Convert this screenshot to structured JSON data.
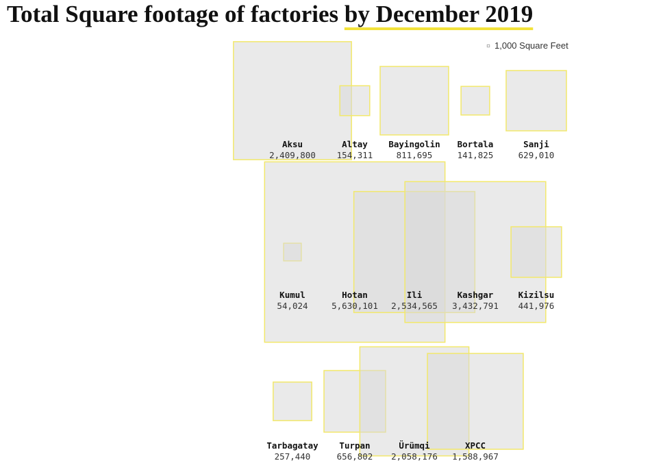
{
  "chart_data": {
    "type": "square_area",
    "title": "Total Square footage of factories",
    "title_highlight": "by December 2019",
    "legend": {
      "value": 1000,
      "label": "1,000 Square Feet"
    },
    "categories": [
      "Aksu",
      "Altay",
      "Bayingolin",
      "Bortala",
      "Sanji",
      "Kumul",
      "Hotan",
      "Ili",
      "Kashgar",
      "Kizilsu",
      "Tarbagatay",
      "Turpan",
      "Ürümqi",
      "XPCC"
    ],
    "values": [
      2409800,
      154311,
      811695,
      141825,
      629010,
      54024,
      5630101,
      2534565,
      3432791,
      441976,
      257440,
      656802,
      2058176,
      1588967
    ],
    "value_labels": [
      "2,409,800",
      "154,311",
      "811,695",
      "141,825",
      "629,010",
      "54,024",
      "5,630,101",
      "2,534,565",
      "3,432,791",
      "441,976",
      "257,440",
      "656,802",
      "2,058,176",
      "1,588,967"
    ],
    "color": "#d9d9d9",
    "stroke": "#f2e86b"
  }
}
